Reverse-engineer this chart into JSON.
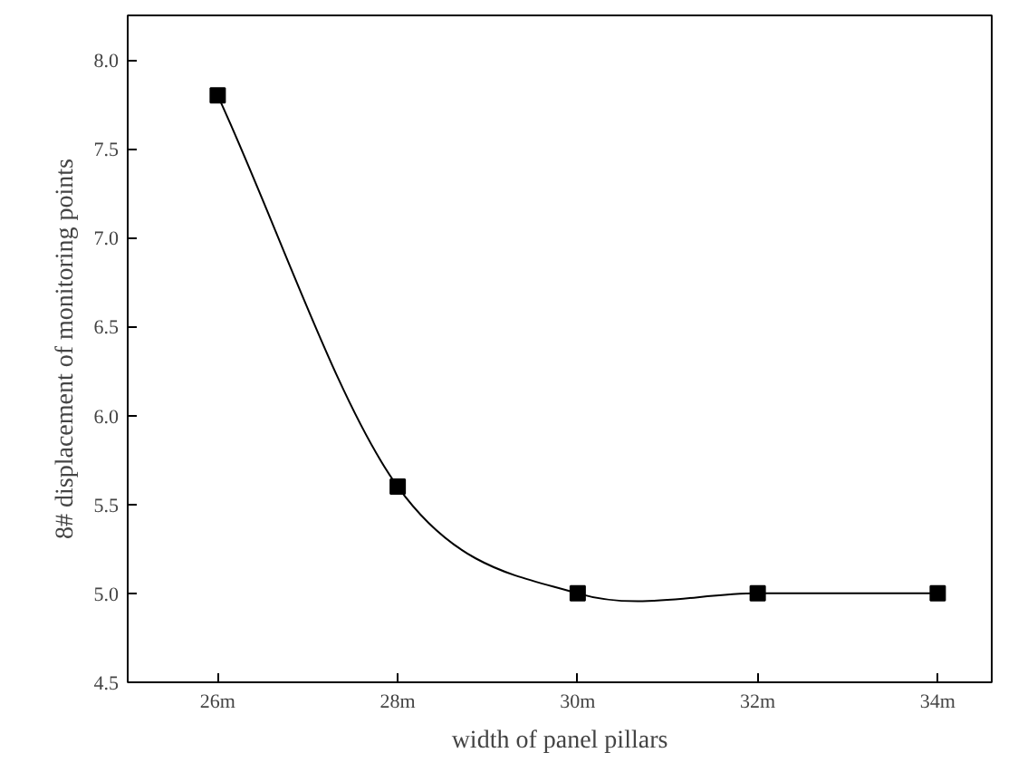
{
  "chart_data": {
    "type": "line",
    "xlabel": "width of panel pillars",
    "ylabel": "8# displacement of monitoring points",
    "x": [
      26,
      28,
      30,
      32,
      34
    ],
    "series": [
      {
        "color": "#000000",
        "values": [
          7.8,
          5.6,
          5.0,
          5.0,
          5.0
        ]
      }
    ],
    "xlim": [
      25,
      34.6
    ],
    "ylim": [
      4.5,
      8.25
    ],
    "xticks": [
      {
        "value": 26,
        "label": "26m"
      },
      {
        "value": 28,
        "label": "28m"
      },
      {
        "value": 30,
        "label": "30m"
      },
      {
        "value": 32,
        "label": "32m"
      },
      {
        "value": 34,
        "label": "34m"
      }
    ],
    "yticks": [
      {
        "value": 4.5,
        "label": "4.5"
      },
      {
        "value": 5.0,
        "label": "5.0"
      },
      {
        "value": 5.5,
        "label": "5.5"
      },
      {
        "value": 6.0,
        "label": "6.0"
      },
      {
        "value": 6.5,
        "label": "6.5"
      },
      {
        "value": 7.0,
        "label": "7.0"
      },
      {
        "value": 7.5,
        "label": "7.5"
      },
      {
        "value": 8.0,
        "label": "8.0"
      }
    ],
    "marker": "square",
    "grid": false
  }
}
